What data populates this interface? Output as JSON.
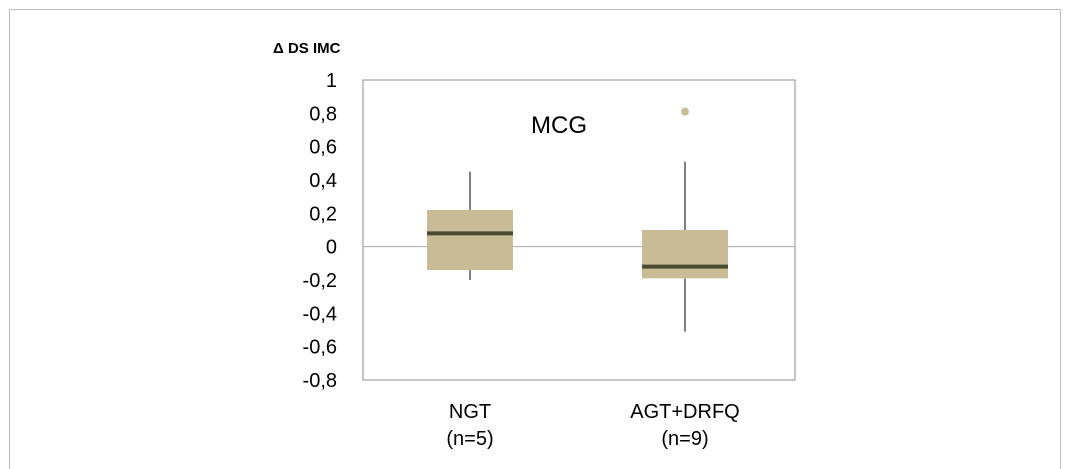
{
  "chart_data": {
    "type": "boxplot",
    "ylabel": "Δ DS IMC",
    "annotation": "MCG",
    "ylim": [
      -0.8,
      1
    ],
    "yticks": [
      "1",
      "0,8",
      "0,6",
      "0,4",
      "0,2",
      "0",
      "-0,2",
      "-0,4",
      "-0,6",
      "-0,8"
    ],
    "yticks_values": [
      1,
      0.8,
      0.6,
      0.4,
      0.2,
      0,
      -0.2,
      -0.4,
      -0.6,
      -0.8
    ],
    "categories": [
      {
        "line1": "NGT",
        "line2": "(n=5)"
      },
      {
        "line1": "AGT+DRFQ",
        "line2": "(n=9)"
      }
    ],
    "boxes": [
      {
        "whisker_low": -0.2,
        "q1": -0.14,
        "median": 0.08,
        "q3": 0.22,
        "whisker_high": 0.45,
        "outliers": []
      },
      {
        "whisker_low": -0.51,
        "q1": -0.19,
        "median": -0.12,
        "q3": 0.1,
        "whisker_high": 0.51,
        "outliers": [
          0.81
        ]
      }
    ],
    "zero_line": true,
    "grid": false
  },
  "colors": {
    "box_fill": "#c8bc97",
    "median": "#4a4a30",
    "outlier": "#c8bc97",
    "axis": "#8c8c8c",
    "zero_line": "#a6a6a6",
    "whisker": "#000000"
  }
}
